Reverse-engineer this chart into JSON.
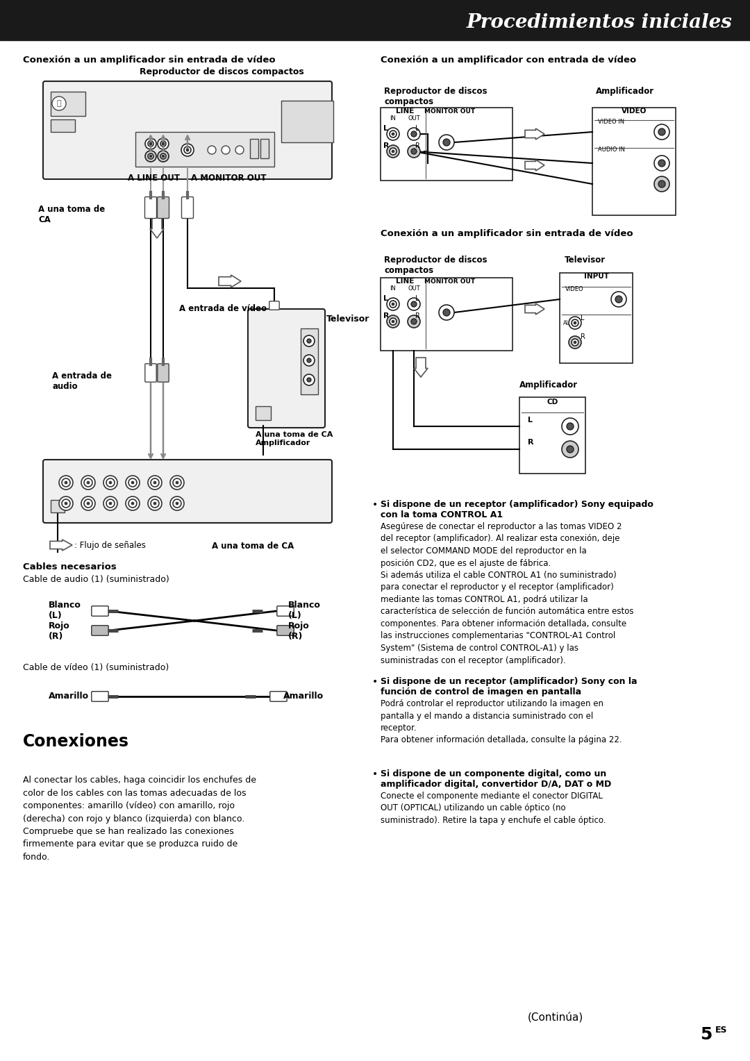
{
  "bg_color": "#ffffff",
  "header_bg": "#1a1a1a",
  "header_text": "Procedimientos iniciales",
  "header_text_color": "#ffffff",
  "section_left_title": "Conexión a un amplificador sin entrada de vídeo",
  "section_right_top_title": "Conexión a un amplificador con entrada de vídeo",
  "section_right_bottom_title": "Conexión a un amplificador sin entrada de vídeo",
  "cables_title": "Cables necesarios",
  "cable_audio_label": "Cable de audio (1) (suministrado)",
  "cable_video_label": "Cable de vídeo (1) (suministrado)",
  "cd_player_label": "Reproductor de discos compactos",
  "amplifier_label": "Amplificador",
  "televisor_label": "Televisor",
  "line_out_label": "A LINE OUT",
  "monitor_out_label": "A MONITOR OUT",
  "ca_label": "A una toma de\nCA",
  "video_entrada_label": "A entrada de vídeo",
  "audio_entrada_label": "A entrada de\naudio",
  "ca_amp_label": "A una toma de CA\nAmplificador",
  "ca_bottom_label": "A una toma de CA",
  "signal_flow_label": ": Flujo de señales",
  "conexiones_title": "Conexiones",
  "conexiones_body": "Al conectar los cables, haga coincidir los enchufes de\ncolor de los cables con las tomas adecuadas de los\ncomponentes: amarillo (vídeo) con amarillo, rojo\n(derecha) con rojo y blanco (izquierda) con blanco.\nCompruebe que se han realizado las conexiones\nfirmemente para evitar que se produzca ruido de\nfondo.",
  "bullet1_bold": "Si dispone de un receptor (amplificador) Sony equipado\ncon la toma CONTROL A1",
  "bullet1_body": "Asegúrese de conectar el reproductor a las tomas VIDEO 2\ndel receptor (amplificador). Al realizar esta conexión, deje\nel selector COMMAND MODE del reproductor en la\nposición CD2, que es el ajuste de fábrica.\nSi además utiliza el cable CONTROL A1 (no suministrado)\npara conectar el reproductor y el receptor (amplificador)\nmediante las tomas CONTROL A1, podrá utilizar la\ncaracterística de selección de función automática entre estos\ncomponentes. Para obtener información detallada, consulte\nlas instrucciones complementarias \"CONTROL-A1 Control\nSystem\" (Sistema de control CONTROL-A1) y las\nsuministradas con el receptor (amplificador).",
  "bullet2_bold": "Si dispone de un receptor (amplificador) Sony con la\nfunción de control de imagen en pantalla",
  "bullet2_body": "Podrá controlar el reproductor utilizando la imagen en\npantalla y el mando a distancia suministrado con el\nreceptor.\nPara obtener información detallada, consulte la página 22.",
  "bullet3_bold": "Si dispone de un componente digital, como un\namplificador digital, convertidor D/A, DAT o MD",
  "bullet3_body": "Conecte el componente mediante el conector DIGITAL\nOUT (OPTICAL) utilizando un cable óptico (no\nsuministrado). Retire la tapa y enchufe el cable óptico.",
  "continua_label": "(Continúa)"
}
